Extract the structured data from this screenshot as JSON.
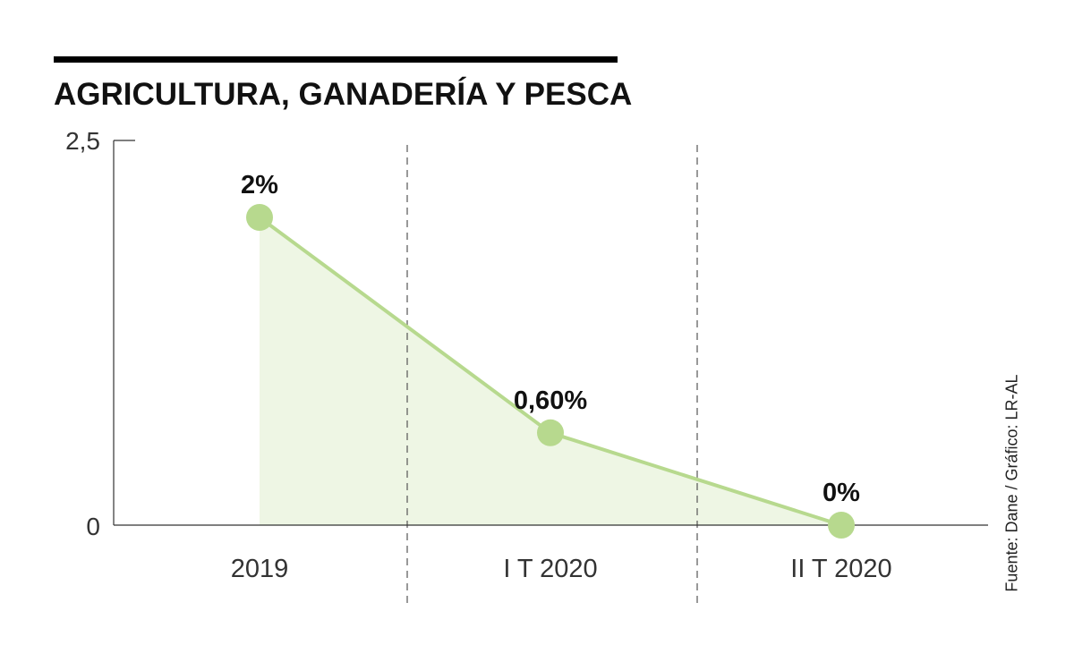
{
  "chart_data": {
    "type": "area",
    "title": "AGRICULTURA, GANADERÍA Y PESCA",
    "categories": [
      "2019",
      "I T 2020",
      "II T 2020"
    ],
    "values": [
      2.0,
      0.6,
      0.0
    ],
    "data_labels": [
      "2%",
      "0,60%",
      "0%"
    ],
    "y_ticks": [
      "0",
      "2,5"
    ],
    "ylim": [
      0,
      2.5
    ],
    "xlabel": "",
    "ylabel": "",
    "grid": false,
    "period_separators": true,
    "line_color": "#b7d98e",
    "marker_color": "#b7d98e",
    "fill_color": "#eef6e4"
  },
  "source": "Fuente: Dane / Gráfico: LR-AL"
}
